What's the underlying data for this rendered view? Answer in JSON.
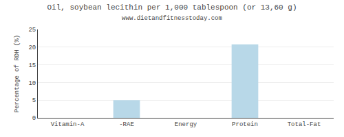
{
  "chart_data": {
    "type": "bar",
    "title": "Oil, soybean lecithin per 1,000 tablespoon (or 13,60 g)",
    "subtitle": "www.dietandfitnesstoday.com",
    "categories": [
      "Vitamin-A",
      "-RAE",
      "Energy",
      "Protein",
      "Total-Fat"
    ],
    "values": [
      0,
      5.0,
      0,
      20.8,
      0
    ],
    "color": "#b8d8e8",
    "ylabel": "Percentage of RDH (%)",
    "ylim": [
      0,
      25
    ],
    "yticks": [
      0,
      5,
      10,
      15,
      20,
      25
    ],
    "grid": true
  }
}
